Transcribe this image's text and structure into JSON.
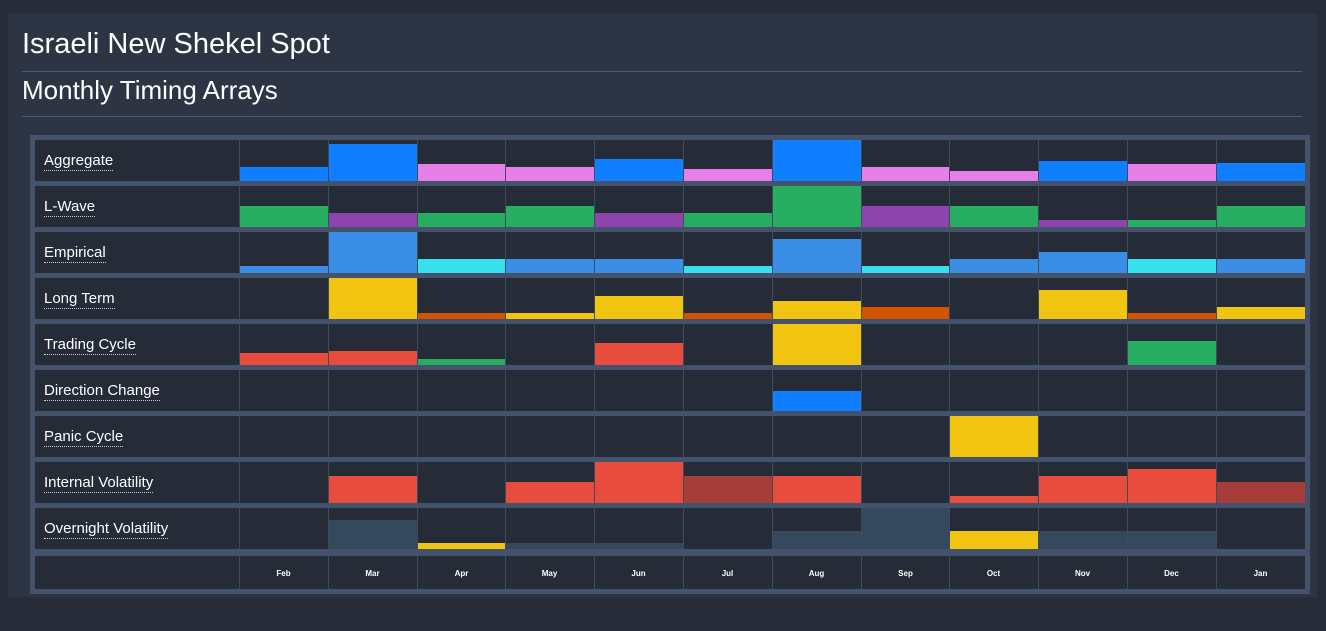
{
  "header": {
    "title": "Israeli New Shekel Spot",
    "subtitle": "Monthly Timing Arrays"
  },
  "colors": {
    "blue": "#0f7fff",
    "pink": "#e67fe8",
    "green": "#27ae60",
    "purple": "#8e44ad",
    "lightblue": "#3b8ee6",
    "cyan": "#36e0ec",
    "yellow": "#f1c40f",
    "orange": "#d35400",
    "red": "#e74c3c",
    "darkred": "#a53e3a",
    "slate": "#34495e"
  },
  "months": [
    "Feb",
    "Mar",
    "Apr",
    "May",
    "Jun",
    "Jul",
    "Aug",
    "Sep",
    "Oct",
    "Nov",
    "Dec",
    "Jan"
  ],
  "rows": [
    {
      "label": "Aggregate",
      "values": [
        0.34,
        0.9,
        0.41,
        0.34,
        0.54,
        0.29,
        1.0,
        0.34,
        0.24,
        0.49,
        0.41,
        0.44
      ],
      "colors": [
        "blue",
        "blue",
        "pink",
        "pink",
        "blue",
        "pink",
        "blue",
        "pink",
        "pink",
        "blue",
        "pink",
        "blue"
      ]
    },
    {
      "label": "L-Wave",
      "values": [
        0.5,
        0.33,
        0.33,
        0.5,
        0.33,
        0.33,
        1.0,
        0.5,
        0.5,
        0.17,
        0.17,
        0.5
      ],
      "colors": [
        "green",
        "purple",
        "green",
        "green",
        "purple",
        "green",
        "green",
        "purple",
        "green",
        "purple",
        "green",
        "green"
      ]
    },
    {
      "label": "Empirical",
      "values": [
        0.17,
        1.0,
        0.33,
        0.33,
        0.33,
        0.17,
        0.83,
        0.17,
        0.33,
        0.5,
        0.33,
        0.33
      ],
      "colors": [
        "lightblue",
        "lightblue",
        "cyan",
        "lightblue",
        "lightblue",
        "cyan",
        "lightblue",
        "cyan",
        "lightblue",
        "lightblue",
        "cyan",
        "lightblue"
      ]
    },
    {
      "label": "Long Term",
      "values": [
        0,
        1.0,
        0.14,
        0.14,
        0.57,
        0.14,
        0.43,
        0.29,
        0,
        0.71,
        0.14,
        0.29
      ],
      "colors": [
        "yellow",
        "yellow",
        "orange",
        "yellow",
        "yellow",
        "orange",
        "yellow",
        "orange",
        "yellow",
        "yellow",
        "orange",
        "yellow"
      ]
    },
    {
      "label": "Trading Cycle",
      "values": [
        0.3,
        0.35,
        0.15,
        0,
        0.53,
        0,
        1.0,
        0,
        0,
        0,
        0.58,
        0
      ],
      "colors": [
        "red",
        "red",
        "green",
        "red",
        "red",
        "red",
        "yellow",
        "red",
        "red",
        "red",
        "green",
        "red"
      ]
    },
    {
      "label": "Direction Change",
      "values": [
        0,
        0,
        0,
        0,
        0,
        0,
        0.48,
        0,
        0,
        0,
        0,
        0
      ],
      "colors": [
        "blue",
        "blue",
        "blue",
        "blue",
        "blue",
        "blue",
        "blue",
        "blue",
        "blue",
        "blue",
        "blue",
        "blue"
      ]
    },
    {
      "label": "Panic Cycle",
      "values": [
        0,
        0,
        0,
        0,
        0,
        0,
        0,
        0,
        1.0,
        0,
        0,
        0
      ],
      "colors": [
        "yellow",
        "yellow",
        "yellow",
        "yellow",
        "yellow",
        "yellow",
        "yellow",
        "yellow",
        "yellow",
        "yellow",
        "yellow",
        "yellow"
      ]
    },
    {
      "label": "Internal Volatility",
      "values": [
        0,
        0.67,
        0,
        0.5,
        1.0,
        0.67,
        0.67,
        0,
        0.17,
        0.67,
        0.83,
        0.5
      ],
      "colors": [
        "red",
        "red",
        "red",
        "red",
        "red",
        "darkred",
        "red",
        "red",
        "red",
        "red",
        "red",
        "darkred"
      ]
    },
    {
      "label": "Overnight Volatility",
      "values": [
        0,
        0.71,
        0.14,
        0.14,
        0.14,
        0,
        0.43,
        1.0,
        0.43,
        0.43,
        0.43,
        0
      ],
      "colors": [
        "slate",
        "slate",
        "yellow",
        "slate",
        "slate",
        "slate",
        "slate",
        "slate",
        "yellow",
        "slate",
        "slate",
        "slate"
      ]
    }
  ]
}
